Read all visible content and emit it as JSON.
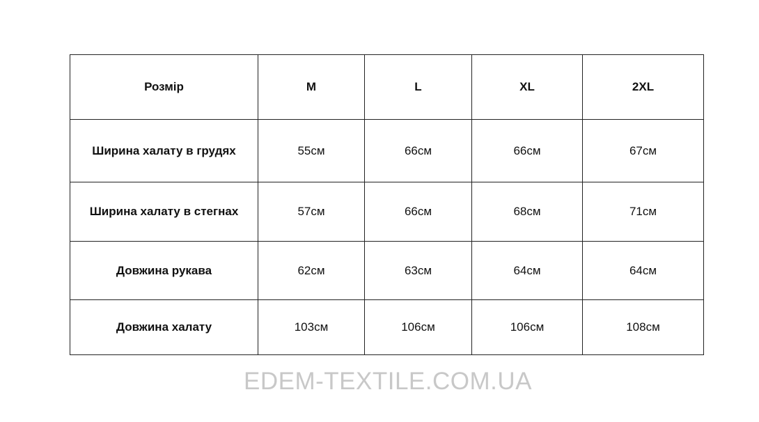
{
  "table": {
    "header": [
      "Розмір",
      "M",
      "L",
      "XL",
      "2XL"
    ],
    "rows": [
      [
        "Ширина халату в грудях",
        "55см",
        "66см",
        "66см",
        "67см"
      ],
      [
        "Ширина халату в стегнах",
        "57см",
        "66см",
        "68см",
        "71см"
      ],
      [
        "Довжина рукава",
        "62см",
        "63см",
        "64см",
        "64см"
      ],
      [
        "Довжина халату",
        "103см",
        "106см",
        "106см",
        "108см"
      ]
    ]
  },
  "watermark": "EDEM-TEXTILE.COM.UA"
}
